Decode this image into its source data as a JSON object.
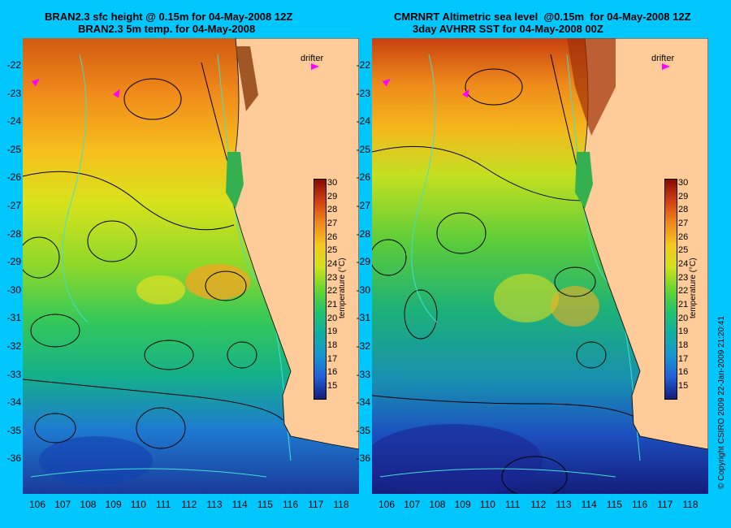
{
  "left_panel": {
    "title_line1": "BRAN2.3 sfc height @ 0.15m for 04-May-2008 12Z",
    "title_line2": "BRAN2.3 5m temp. for 04-May-2008",
    "drifter_label": "drifter",
    "colorbar_title": "temperature (°C)"
  },
  "right_panel": {
    "title_line1": "CMRNRT Altimetric sea level  @0.15m  for 04-May-2008 12Z",
    "title_line2": "3day AVHRR SST for 04-May-2008 00Z",
    "drifter_label": "drifter",
    "colorbar_title": "temperature (°C)"
  },
  "y_ticks": [
    "-22",
    "-23",
    "-24",
    "-25",
    "-26",
    "-27",
    "-28",
    "-29",
    "-30",
    "-31",
    "-32",
    "-33",
    "-34",
    "-35",
    "-36"
  ],
  "x_ticks": [
    "106",
    "107",
    "108",
    "109",
    "110",
    "111",
    "112",
    "113",
    "114",
    "115",
    "116",
    "117",
    "118"
  ],
  "colorbar_ticks": [
    "30",
    "29",
    "28",
    "27",
    "26",
    "25",
    "24",
    "23",
    "22",
    "21",
    "20",
    "19",
    "18",
    "17",
    "16",
    "15"
  ],
  "copyright": "© Copyright CSIRO 2009   22-Jan-2009 21:20:41",
  "colors": {
    "background": "#00c8ff",
    "land": "#ffcc99",
    "drifter": "#ff00ff"
  }
}
